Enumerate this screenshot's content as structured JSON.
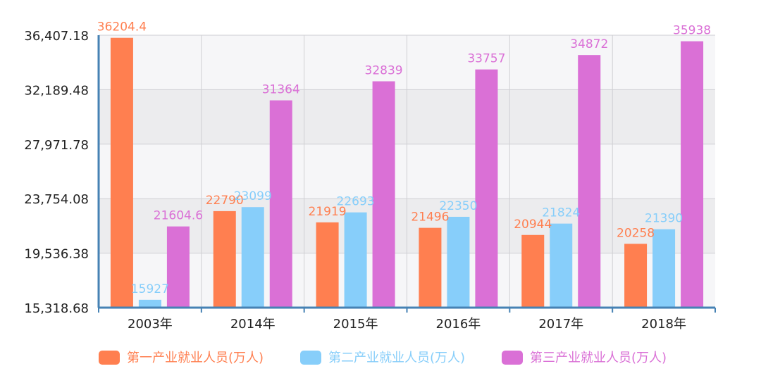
{
  "chart_data": {
    "type": "bar",
    "categories": [
      "2003年",
      "2014年",
      "2015年",
      "2016年",
      "2017年",
      "2018年"
    ],
    "series": [
      {
        "name": "第一产业就业人员(万人)",
        "color": "#ff7f50",
        "values": [
          36204.4,
          22790,
          21919,
          21496,
          20944,
          20258
        ],
        "labels": [
          "36204.4",
          "22790",
          "21919",
          "21496",
          "20944",
          "20258"
        ]
      },
      {
        "name": "第二产业就业人员(万人)",
        "color": "#87cefa",
        "values": [
          15927,
          23099,
          22693,
          22350,
          21824,
          21390
        ],
        "labels": [
          "15927",
          "23099",
          "22693",
          "22350",
          "21824",
          "21390"
        ]
      },
      {
        "name": "第三产业就业人员(万人)",
        "color": "#da70d6",
        "values": [
          21604.6,
          31364,
          32839,
          33757,
          34872,
          35938
        ],
        "labels": [
          "21604.6",
          "31364",
          "32839",
          "33757",
          "34872",
          "35938"
        ]
      }
    ],
    "y_ticks": [
      15318.68,
      19536.38,
      23754.08,
      27971.78,
      32189.48,
      36407.18
    ],
    "y_tick_labels": [
      "15,318.68",
      "19,536.38",
      "23,754.08",
      "27,971.78",
      "32,189.48",
      "36,407.18"
    ],
    "ylim": [
      15318.68,
      36407.18
    ],
    "grid": true,
    "legend_position": "bottom"
  }
}
